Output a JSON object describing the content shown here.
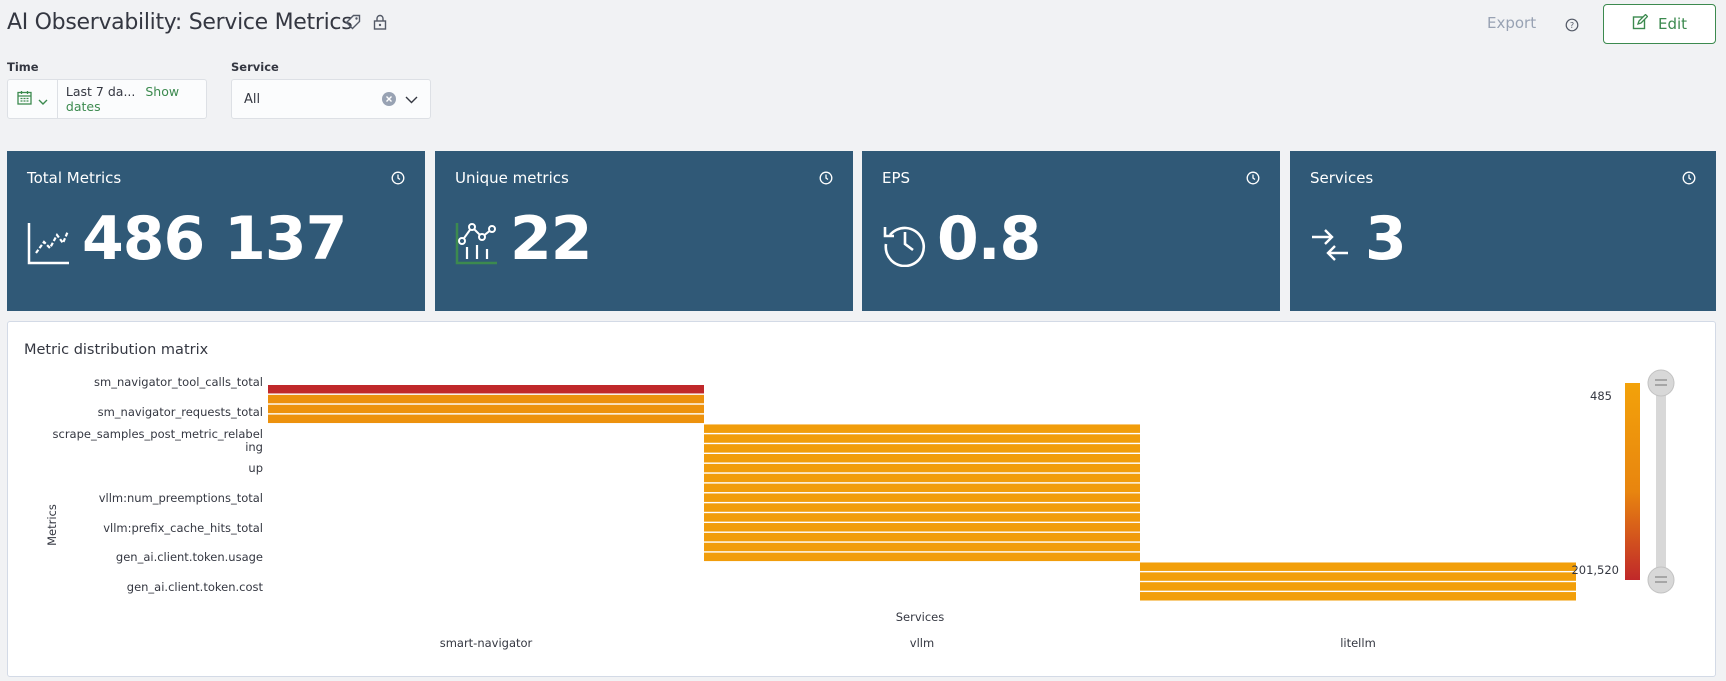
{
  "header": {
    "title": "AI Observability: Service Metrics",
    "export_label": "Export",
    "edit_label": "Edit"
  },
  "filters": {
    "time_label": "Time",
    "time_value": "Last 7 da...",
    "show_dates": "Show dates",
    "service_label": "Service",
    "service_value": "All"
  },
  "cards": [
    {
      "title": "Total Metrics",
      "value": "486 137",
      "icon": "line-chart-icon"
    },
    {
      "title": "Unique metrics",
      "value": "22",
      "icon": "bar-chart-nodes-icon"
    },
    {
      "title": "EPS",
      "value": "0.8",
      "icon": "history-clock-icon"
    },
    {
      "title": "Services",
      "value": "3",
      "icon": "arrows-converge-icon"
    }
  ],
  "colors": {
    "card_bg": "#305977",
    "accent_green": "#3c8a4f",
    "heat_high": "#c0282a",
    "heat_mid": "#e8850f",
    "heat_low": "#f3a20a"
  },
  "chart_data": {
    "type": "heatmap",
    "title": "Metric distribution matrix",
    "xlabel": "Services",
    "ylabel": "Metrics",
    "categories": [
      "smart-navigator",
      "vllm",
      "litellm"
    ],
    "y_tick_labels": [
      "sm_navigator_tool_calls_total",
      "sm_navigator_requests_total",
      "scrape_samples_post_metric_relabel ing",
      "up",
      "vllm:num_preemptions_total",
      "vllm:prefix_cache_hits_total",
      "gen_ai.client.token.usage",
      "gen_ai.client.token.cost"
    ],
    "rows": [
      {
        "service_index": 0,
        "level": 1.0
      },
      {
        "service_index": 0,
        "level": 0.35
      },
      {
        "service_index": 0,
        "level": 0.3
      },
      {
        "service_index": 0,
        "level": 0.3
      },
      {
        "service_index": 1,
        "level": 0.1
      },
      {
        "service_index": 1,
        "level": 0.1
      },
      {
        "service_index": 1,
        "level": 0.1
      },
      {
        "service_index": 1,
        "level": 0.1
      },
      {
        "service_index": 1,
        "level": 0.1
      },
      {
        "service_index": 1,
        "level": 0.1
      },
      {
        "service_index": 1,
        "level": 0.1
      },
      {
        "service_index": 1,
        "level": 0.1
      },
      {
        "service_index": 1,
        "level": 0.1
      },
      {
        "service_index": 1,
        "level": 0.1
      },
      {
        "service_index": 1,
        "level": 0.1
      },
      {
        "service_index": 1,
        "level": 0.1
      },
      {
        "service_index": 1,
        "level": 0.1
      },
      {
        "service_index": 1,
        "level": 0.1
      },
      {
        "service_index": 2,
        "level": 0.05
      },
      {
        "service_index": 2,
        "level": 0.05
      },
      {
        "service_index": 2,
        "level": 0.05
      },
      {
        "service_index": 2,
        "level": 0.05
      }
    ],
    "legend": {
      "max_label": "201,520",
      "min_label": "485"
    }
  }
}
